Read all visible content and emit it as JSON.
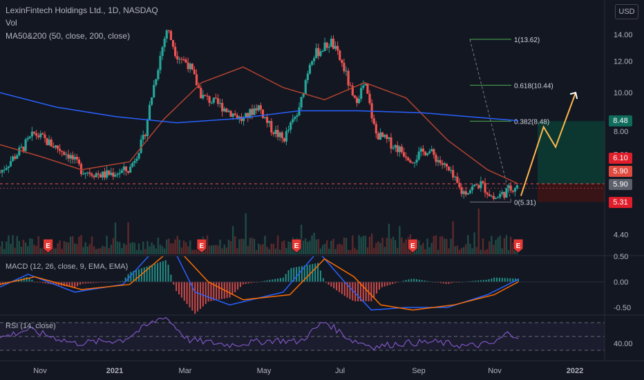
{
  "header": {
    "title": "LexinFintech Holdings Ltd., 1D, NASDAQ",
    "vol_label": "Vol",
    "ma_label": "MA50&200 (50, close, 200, close)"
  },
  "currency": "USD",
  "macd_label": "MACD (12, 26, close, 9, EMA, EMA)",
  "rsi_label": "RSI (14, close)",
  "price_tags": {
    "target": "8.48",
    "level_610": "6.10",
    "current_1": "5.90",
    "current_2": "5.90",
    "stop": "5.31"
  },
  "colors": {
    "background": "#131722",
    "up": "#26a69a",
    "down": "#ef5350",
    "ma50": "#b2432f",
    "ma200": "#2962ff",
    "macd_line": "#2962ff",
    "signal_line": "#ff6d00",
    "rsi_line": "#7e57c2",
    "projection": "#ffb74d",
    "target_zone": "#0c3b33",
    "stop_zone": "#3b1416"
  },
  "earnings_marker": "E",
  "chart_data": {
    "type": "candlestick",
    "title": "LexinFintech Holdings Ltd., 1D, NASDAQ",
    "x_ticks": [
      "Nov",
      "2021",
      "Mar",
      "May",
      "Jul",
      "Sep",
      "Nov",
      "2022"
    ],
    "y_ticks": [
      "14.00",
      "12.00",
      "10.00",
      "8.00",
      "7.00",
      "4.40"
    ],
    "ylim": [
      4.4,
      15.0
    ],
    "log_scale": true,
    "price_path": [
      [
        "2020-10-20",
        6.3
      ],
      [
        "2020-11-05",
        7.2
      ],
      [
        "2020-11-15",
        7.9
      ],
      [
        "2020-11-25",
        7.5
      ],
      [
        "2020-12-10",
        7.0
      ],
      [
        "2020-12-20",
        6.4
      ],
      [
        "2021-01-05",
        6.2
      ],
      [
        "2021-01-25",
        6.4
      ],
      [
        "2021-02-05",
        7.7
      ],
      [
        "2021-02-15",
        11.5
      ],
      [
        "2021-02-22",
        14.5
      ],
      [
        "2021-03-01",
        12.5
      ],
      [
        "2021-03-10",
        11.8
      ],
      [
        "2021-03-20",
        9.8
      ],
      [
        "2021-04-05",
        9.2
      ],
      [
        "2021-04-20",
        8.5
      ],
      [
        "2021-05-01",
        9.3
      ],
      [
        "2021-05-10",
        8.2
      ],
      [
        "2021-05-20",
        7.6
      ],
      [
        "2021-06-01",
        9.0
      ],
      [
        "2021-06-10",
        12.3
      ],
      [
        "2021-06-25",
        13.4
      ],
      [
        "2021-07-05",
        11.4
      ],
      [
        "2021-07-12",
        9.4
      ],
      [
        "2021-07-20",
        10.5
      ],
      [
        "2021-07-28",
        7.9
      ],
      [
        "2021-08-10",
        7.4
      ],
      [
        "2021-08-25",
        6.8
      ],
      [
        "2021-09-05",
        7.2
      ],
      [
        "2021-09-20",
        6.4
      ],
      [
        "2021-10-01",
        5.6
      ],
      [
        "2021-10-15",
        5.9
      ],
      [
        "2021-10-25",
        5.4
      ],
      [
        "2021-11-05",
        5.7
      ],
      [
        "2021-11-12",
        5.9
      ]
    ],
    "ma50_path": [
      [
        "2020-10-20",
        7.4
      ],
      [
        "2020-11-20",
        6.9
      ],
      [
        "2020-12-20",
        6.4
      ],
      [
        "2021-01-25",
        6.7
      ],
      [
        "2021-02-20",
        8.6
      ],
      [
        "2021-03-20",
        10.6
      ],
      [
        "2021-04-20",
        11.6
      ],
      [
        "2021-05-20",
        10.3
      ],
      [
        "2021-06-20",
        9.6
      ],
      [
        "2021-07-20",
        10.6
      ],
      [
        "2021-08-20",
        9.7
      ],
      [
        "2021-09-20",
        7.6
      ],
      [
        "2021-10-20",
        6.4
      ],
      [
        "2021-11-12",
        5.9
      ]
    ],
    "ma200_path": [
      [
        "2020-10-20",
        10.0
      ],
      [
        "2020-12-01",
        9.2
      ],
      [
        "2021-01-15",
        8.7
      ],
      [
        "2021-03-01",
        8.4
      ],
      [
        "2021-04-15",
        8.6
      ],
      [
        "2021-06-01",
        9.0
      ],
      [
        "2021-07-15",
        9.0
      ],
      [
        "2021-09-01",
        8.9
      ],
      [
        "2021-11-12",
        8.5
      ]
    ],
    "fibonacci": [
      {
        "label": "1(13.62)",
        "value": 13.62
      },
      {
        "label": "0.618(10.44)",
        "value": 10.44
      },
      {
        "label": "0.382(8.48)",
        "value": 8.48
      },
      {
        "label": "0(5.31)",
        "value": 5.31
      }
    ],
    "projection": [
      [
        "2021-11-14",
        5.5
      ],
      [
        "2021-12-01",
        8.2
      ],
      [
        "2021-12-10",
        7.3
      ],
      [
        "2021-12-25",
        10.0
      ]
    ],
    "earnings_dates": [
      "2020-11-25",
      "2021-03-20",
      "2021-05-30",
      "2021-08-25",
      "2021-11-12"
    ],
    "macd": {
      "ticks": [
        "0.50",
        "0.00",
        "-0.50"
      ],
      "ylim": [
        -0.6,
        0.6
      ],
      "macd_path": [
        [
          "2020-10-20",
          -0.1
        ],
        [
          "2020-11-10",
          0.15
        ],
        [
          "2020-12-15",
          -0.2
        ],
        [
          "2021-01-20",
          -0.05
        ],
        [
          "2021-02-22",
          0.9
        ],
        [
          "2021-03-15",
          -0.2
        ],
        [
          "2021-04-10",
          -0.45
        ],
        [
          "2021-05-20",
          -0.2
        ],
        [
          "2021-06-15",
          0.6
        ],
        [
          "2021-07-05",
          0.0
        ],
        [
          "2021-07-25",
          -0.55
        ],
        [
          "2021-08-20",
          -0.5
        ],
        [
          "2021-09-20",
          -0.5
        ],
        [
          "2021-10-20",
          -0.25
        ],
        [
          "2021-11-12",
          0.05
        ]
      ],
      "signal_path": [
        [
          "2020-10-20",
          -0.05
        ],
        [
          "2020-11-15",
          0.1
        ],
        [
          "2020-12-20",
          -0.15
        ],
        [
          "2021-01-25",
          -0.05
        ],
        [
          "2021-02-28",
          0.7
        ],
        [
          "2021-03-25",
          0.0
        ],
        [
          "2021-04-20",
          -0.35
        ],
        [
          "2021-05-25",
          -0.25
        ],
        [
          "2021-06-20",
          0.45
        ],
        [
          "2021-07-12",
          0.1
        ],
        [
          "2021-08-01",
          -0.45
        ],
        [
          "2021-08-25",
          -0.55
        ],
        [
          "2021-09-25",
          -0.45
        ],
        [
          "2021-10-25",
          -0.25
        ],
        [
          "2021-11-12",
          0.0
        ]
      ]
    },
    "rsi": {
      "ticks": [
        "40.00"
      ],
      "upper": 70,
      "middle": 50,
      "lower": 30,
      "ylim": [
        20,
        80
      ],
      "path": [
        [
          "2020-10-20",
          48
        ],
        [
          "2020-11-10",
          60
        ],
        [
          "2020-12-15",
          40
        ],
        [
          "2021-01-20",
          45
        ],
        [
          "2021-02-20",
          80
        ],
        [
          "2021-03-10",
          45
        ],
        [
          "2021-04-10",
          38
        ],
        [
          "2021-05-15",
          45
        ],
        [
          "2021-06-01",
          42
        ],
        [
          "2021-06-20",
          72
        ],
        [
          "2021-07-10",
          45
        ],
        [
          "2021-07-28",
          35
        ],
        [
          "2021-08-15",
          40
        ],
        [
          "2021-09-10",
          42
        ],
        [
          "2021-10-05",
          36
        ],
        [
          "2021-10-25",
          40
        ],
        [
          "2021-11-05",
          56
        ],
        [
          "2021-11-12",
          50
        ]
      ]
    }
  }
}
